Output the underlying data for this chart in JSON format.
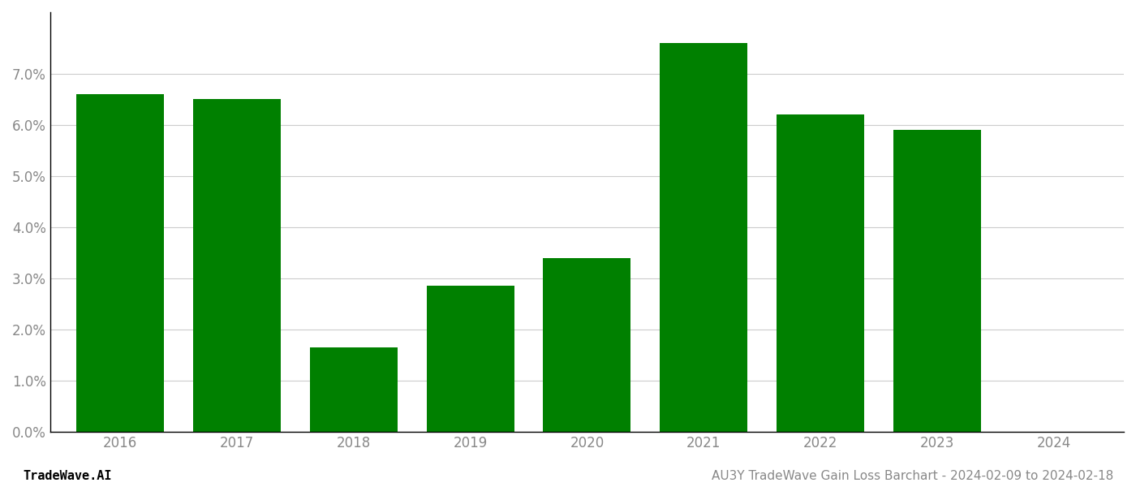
{
  "years": [
    "2016",
    "2017",
    "2018",
    "2019",
    "2020",
    "2021",
    "2022",
    "2023",
    "2024"
  ],
  "values": [
    0.066,
    0.065,
    0.0165,
    0.0285,
    0.034,
    0.076,
    0.062,
    0.059,
    null
  ],
  "bar_color": "#008000",
  "background_color": "#ffffff",
  "yticks": [
    0.0,
    0.01,
    0.02,
    0.03,
    0.04,
    0.05,
    0.06,
    0.07
  ],
  "ylim": [
    0,
    0.082
  ],
  "grid_color": "#cccccc",
  "left_footer": "TradeWave.AI",
  "right_footer": "AU3Y TradeWave Gain Loss Barchart - 2024-02-09 to 2024-02-18",
  "footer_color": "#888888",
  "footer_fontsize": 11,
  "axis_label_color": "#888888",
  "tick_fontsize": 12,
  "bar_width": 0.75
}
